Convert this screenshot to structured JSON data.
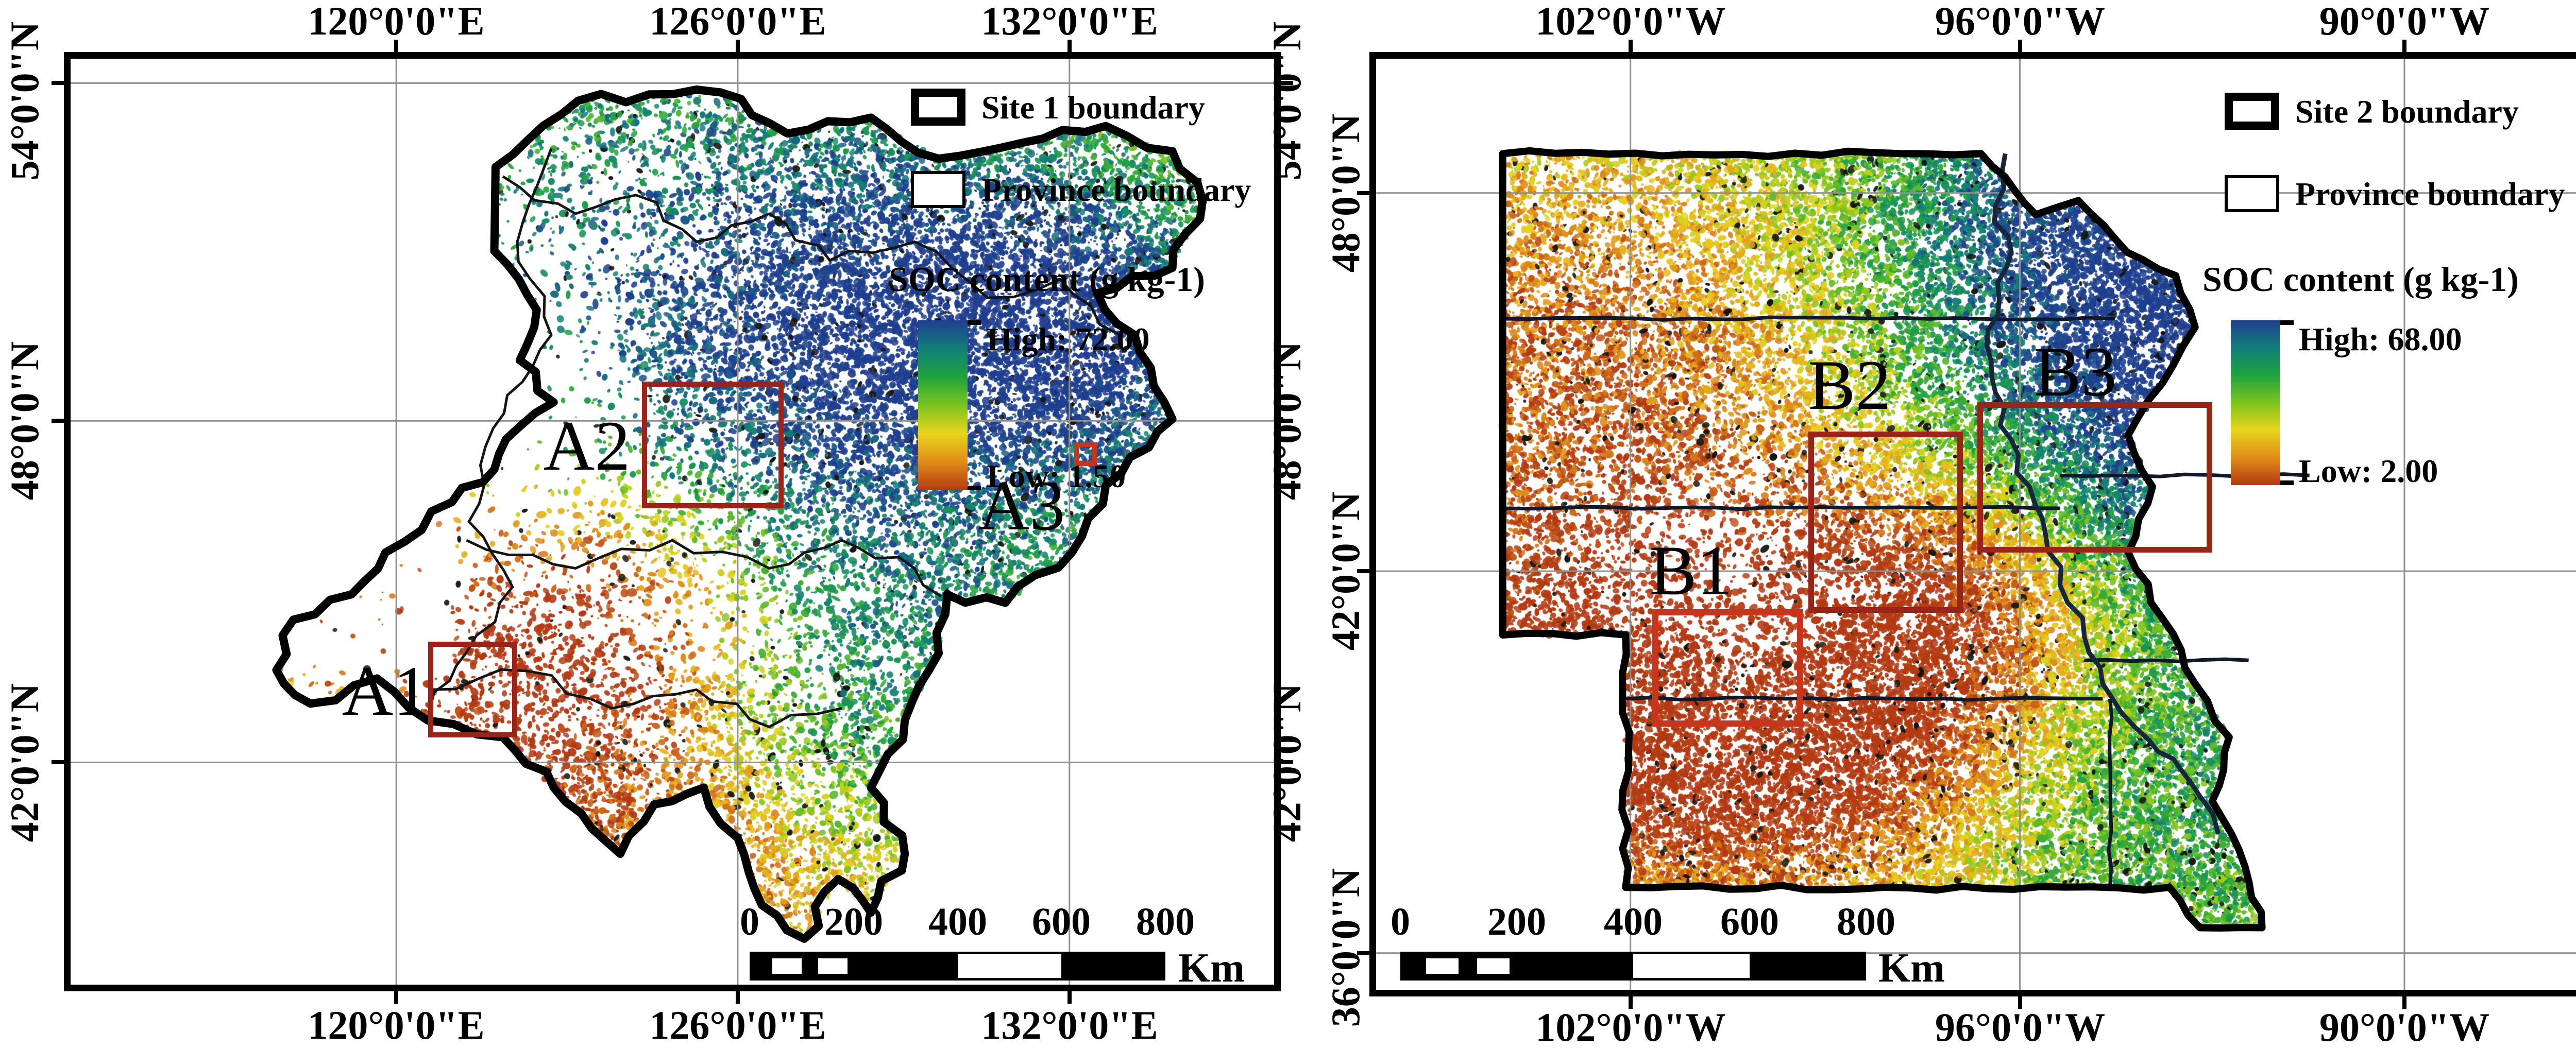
{
  "panels": [
    {
      "id": "site1",
      "axis": {
        "lon_labels": [
          "120°0'0\"E",
          "126°0'0\"E",
          "132°0'0\"E"
        ],
        "lat_labels": [
          "54°0'0\"N",
          "48°0'0\"N",
          "42°0'0\"N"
        ]
      },
      "legend": {
        "site_boundary": "Site 1 boundary",
        "province_boundary": "Province boundary",
        "soc_title": "SOC content (g kg-1)",
        "high": "High: 72.00",
        "low": "Low: 1.50"
      },
      "study_areas": [
        {
          "label": "A1"
        },
        {
          "label": "A2"
        },
        {
          "label": "A3"
        }
      ],
      "scalebar": {
        "ticks": [
          "0",
          "200",
          "400",
          "600",
          "800"
        ],
        "unit": "Km"
      }
    },
    {
      "id": "site2",
      "axis": {
        "lon_labels": [
          "102°0'0\"W",
          "96°0'0\"W",
          "90°0'0\"W"
        ],
        "lat_labels": [
          "48°0'0\"N",
          "42°0'0\"N",
          "36°0'0\"N"
        ]
      },
      "legend": {
        "site_boundary": "Site 2 boundary",
        "province_boundary": "Province boundary",
        "soc_title": "SOC content (g kg-1)",
        "high": "High: 68.00",
        "low": "Low: 2.00"
      },
      "study_areas": [
        {
          "label": "B1"
        },
        {
          "label": "B2"
        },
        {
          "label": "B3"
        }
      ],
      "scalebar": {
        "ticks": [
          "0",
          "200",
          "400",
          "600",
          "800"
        ],
        "unit": "Km"
      }
    }
  ],
  "palette": {
    "soc_ramp_low_to_high": [
      "#b33a12",
      "#e08c1a",
      "#e8d51c",
      "#7cc41e",
      "#1fa33c",
      "#127e79",
      "#1f3f8f"
    ],
    "study_box_dark_red": "#9a2418",
    "study_box_bright_red": "#c8341c",
    "boundary_black": "#000000",
    "gridline_gray": "#8f8f8f",
    "river_dark": "#16263c"
  }
}
